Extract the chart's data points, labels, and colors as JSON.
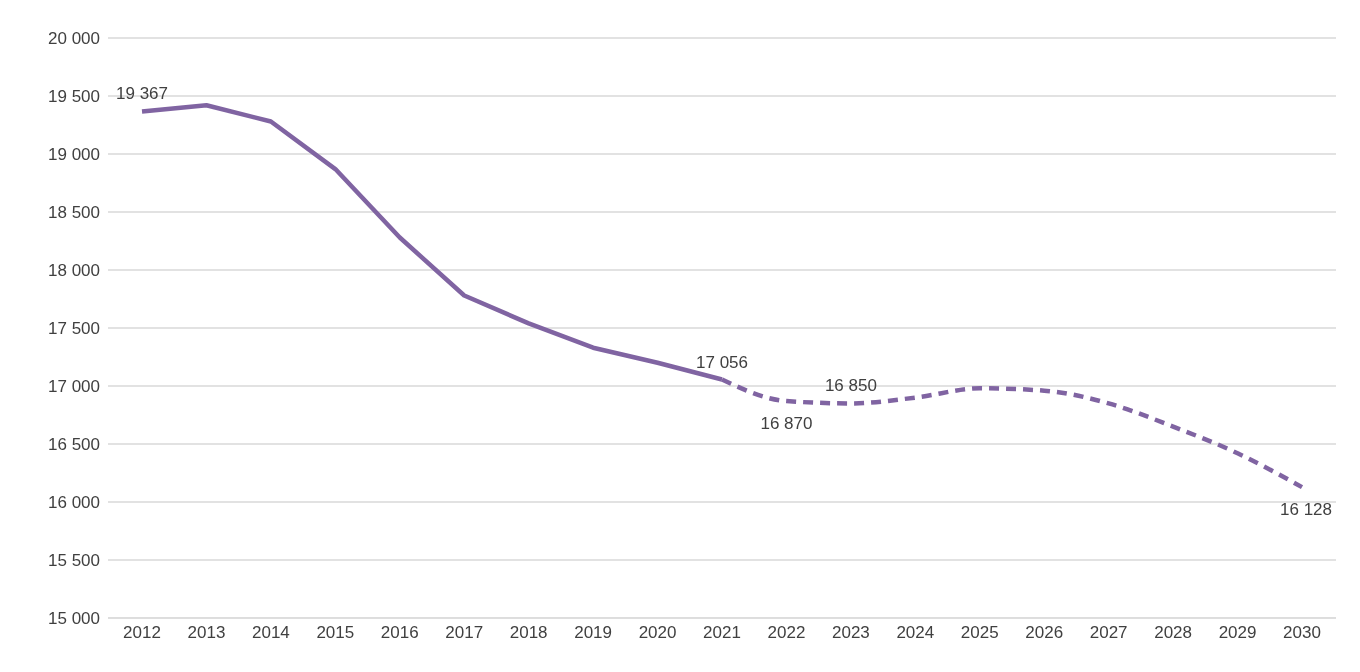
{
  "chart_data": {
    "type": "line",
    "categories": [
      "2012",
      "2013",
      "2014",
      "2015",
      "2016",
      "2017",
      "2018",
      "2019",
      "2020",
      "2021",
      "2022",
      "2023",
      "2024",
      "2025",
      "2026",
      "2027",
      "2028",
      "2029",
      "2030"
    ],
    "series": [
      {
        "color": "#8064a2",
        "line_style": "solid",
        "values": [
          19367,
          19420,
          19280,
          18870,
          18280,
          17780,
          17540,
          17330,
          17200,
          17056,
          null,
          null,
          null,
          null,
          null,
          null,
          null,
          null,
          null
        ],
        "value_labels": [
          "19 367",
          null,
          null,
          null,
          null,
          null,
          null,
          null,
          null,
          "17 056",
          null,
          null,
          null,
          null,
          null,
          null,
          null,
          null,
          null
        ]
      },
      {
        "color": "#8064a2",
        "line_style": "dashed",
        "values": [
          null,
          null,
          null,
          null,
          null,
          null,
          null,
          null,
          null,
          17056,
          16870,
          16850,
          16900,
          16980,
          16960,
          16850,
          16650,
          16420,
          16128
        ],
        "value_labels": [
          null,
          null,
          null,
          null,
          null,
          null,
          null,
          null,
          null,
          null,
          "16 870",
          "16 850",
          null,
          null,
          null,
          null,
          null,
          null,
          "16 128"
        ]
      }
    ],
    "ylim": [
      15000,
      20000
    ],
    "yticks": [
      {
        "value": 15000,
        "label": "15 000"
      },
      {
        "value": 15500,
        "label": "15 500"
      },
      {
        "value": 16000,
        "label": "16 000"
      },
      {
        "value": 16500,
        "label": "16 500"
      },
      {
        "value": 17000,
        "label": "17 000"
      },
      {
        "value": 17500,
        "label": "17 500"
      },
      {
        "value": 18000,
        "label": "18 000"
      },
      {
        "value": 18500,
        "label": "18 500"
      },
      {
        "value": 19000,
        "label": "19 000"
      },
      {
        "value": 19500,
        "label": "19 500"
      },
      {
        "value": 20000,
        "label": "20 000"
      }
    ],
    "grid": "y",
    "marker": "none",
    "legend": false
  }
}
